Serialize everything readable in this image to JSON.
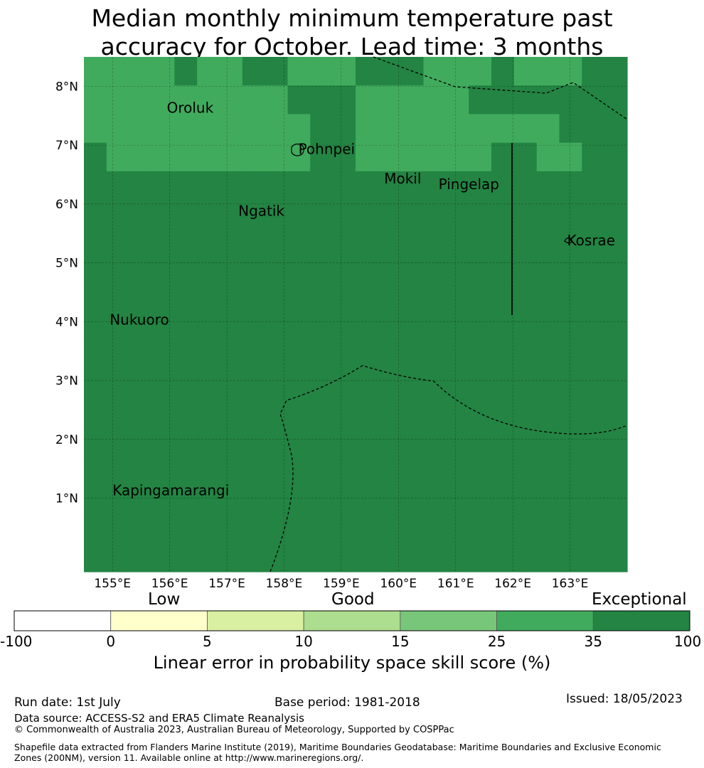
{
  "title_line1": "Median monthly minimum temperature past",
  "title_line2": "accuracy for October. Lead time: 3 months",
  "map": {
    "lon_range": [
      154.5,
      164.0
    ],
    "lat_range": [
      -0.25,
      8.5
    ],
    "lon_ticks": [
      "155°E",
      "156°E",
      "157°E",
      "158°E",
      "159°E",
      "160°E",
      "161°E",
      "162°E",
      "163°E"
    ],
    "lat_ticks": [
      "1°N",
      "2°N",
      "3°N",
      "4°N",
      "5°N",
      "6°N",
      "7°N",
      "8°N"
    ],
    "grid": true,
    "cells": [
      [
        5,
        5,
        5,
        5,
        6,
        5,
        5,
        6,
        6,
        5,
        5,
        5,
        6,
        6,
        6,
        5,
        5,
        5,
        6,
        5,
        5,
        5,
        6,
        6
      ],
      [
        5,
        5,
        5,
        5,
        5,
        5,
        5,
        5,
        5,
        6,
        6,
        6,
        5,
        5,
        5,
        5,
        5,
        6,
        6,
        6,
        6,
        6,
        6,
        6
      ],
      [
        5,
        5,
        5,
        5,
        5,
        5,
        5,
        5,
        5,
        5,
        6,
        6,
        5,
        5,
        5,
        5,
        5,
        5,
        5,
        5,
        5,
        6,
        6,
        6
      ],
      [
        6,
        5,
        5,
        5,
        5,
        5,
        5,
        5,
        5,
        5,
        6,
        6,
        5,
        5,
        5,
        5,
        5,
        5,
        6,
        6,
        5,
        5,
        6,
        6
      ],
      [
        6,
        6,
        6,
        6,
        6,
        6,
        6,
        6,
        6,
        6,
        6,
        6,
        6,
        6,
        6,
        6,
        6,
        6,
        6,
        6,
        6,
        6,
        6,
        6
      ],
      [
        6,
        6,
        6,
        6,
        6,
        6,
        6,
        6,
        6,
        6,
        6,
        6,
        6,
        6,
        6,
        6,
        6,
        6,
        6,
        6,
        6,
        6,
        6,
        6
      ],
      [
        6,
        6,
        6,
        6,
        6,
        6,
        6,
        6,
        6,
        6,
        6,
        6,
        6,
        6,
        6,
        6,
        6,
        6,
        6,
        6,
        6,
        6,
        6,
        6
      ],
      [
        6,
        6,
        6,
        6,
        6,
        6,
        6,
        6,
        6,
        6,
        6,
        6,
        6,
        6,
        6,
        6,
        6,
        6,
        6,
        6,
        6,
        6,
        6,
        6
      ],
      [
        6,
        6,
        6,
        6,
        6,
        6,
        6,
        6,
        6,
        6,
        6,
        6,
        6,
        6,
        6,
        6,
        6,
        6,
        6,
        6,
        6,
        6,
        6,
        6
      ],
      [
        6,
        6,
        6,
        6,
        6,
        6,
        6,
        6,
        6,
        6,
        6,
        6,
        6,
        6,
        6,
        6,
        6,
        6,
        6,
        6,
        6,
        6,
        6,
        6
      ],
      [
        6,
        6,
        6,
        6,
        6,
        6,
        6,
        6,
        6,
        6,
        6,
        6,
        6,
        6,
        6,
        6,
        6,
        6,
        6,
        6,
        6,
        6,
        6,
        6
      ],
      [
        6,
        6,
        6,
        6,
        6,
        6,
        6,
        6,
        6,
        6,
        6,
        6,
        6,
        6,
        6,
        6,
        6,
        6,
        6,
        6,
        6,
        6,
        6,
        6
      ],
      [
        6,
        6,
        6,
        6,
        6,
        6,
        6,
        6,
        6,
        6,
        6,
        6,
        6,
        6,
        6,
        6,
        6,
        6,
        6,
        6,
        6,
        6,
        6,
        6
      ],
      [
        6,
        6,
        6,
        6,
        6,
        6,
        6,
        6,
        6,
        6,
        6,
        6,
        6,
        6,
        6,
        6,
        6,
        6,
        6,
        6,
        6,
        6,
        6,
        6
      ],
      [
        6,
        6,
        6,
        6,
        6,
        6,
        6,
        6,
        6,
        6,
        6,
        6,
        6,
        6,
        6,
        6,
        6,
        6,
        6,
        6,
        6,
        6,
        6,
        6
      ],
      [
        6,
        6,
        6,
        6,
        6,
        6,
        6,
        6,
        6,
        6,
        6,
        6,
        6,
        6,
        6,
        6,
        6,
        6,
        6,
        6,
        6,
        6,
        6,
        6
      ],
      [
        6,
        6,
        6,
        6,
        6,
        6,
        6,
        6,
        6,
        6,
        6,
        6,
        6,
        6,
        6,
        6,
        6,
        6,
        6,
        6,
        6,
        6,
        6,
        6
      ],
      [
        6,
        6,
        6,
        6,
        6,
        6,
        6,
        6,
        6,
        6,
        6,
        6,
        6,
        6,
        6,
        6,
        6,
        6,
        6,
        6,
        6,
        6,
        6,
        6
      ]
    ],
    "places": [
      {
        "name": "Oroluk",
        "lon": 155.95,
        "lat": 7.55
      },
      {
        "name": "Pohnpei",
        "lon": 158.25,
        "lat": 6.85
      },
      {
        "name": "Mokil",
        "lon": 159.75,
        "lat": 6.35
      },
      {
        "name": "Pingelap",
        "lon": 160.7,
        "lat": 6.25
      },
      {
        "name": "Ngatik",
        "lon": 157.2,
        "lat": 5.8
      },
      {
        "name": "Kosrae",
        "lon": 162.95,
        "lat": 5.3
      },
      {
        "name": "Nukuoro",
        "lon": 154.95,
        "lat": 3.95
      },
      {
        "name": "Kapingamarangi",
        "lon": 155.0,
        "lat": 1.05
      }
    ]
  },
  "colorbar": {
    "categories": [
      {
        "label": "Low"
      },
      {
        "label": "Good"
      },
      {
        "label": "Exceptional"
      }
    ],
    "ticks": [
      "-100",
      "0",
      "5",
      "10",
      "15",
      "25",
      "35",
      "100"
    ],
    "colors": [
      "#ffffff",
      "#ffffcc",
      "#d9f0a3",
      "#addd8e",
      "#78c679",
      "#41ab5d",
      "#238443"
    ],
    "title": "Linear error in probability space skill score (%)"
  },
  "footer": {
    "run_date": "Run date: 1st July",
    "base_period": "Base period: 1981-2018",
    "issued": "Issued: 18/05/2023",
    "data_source": "Data source: ACCESS-S2 and ERA5 Climate Reanalysis",
    "copyright": "© Commonwealth of Australia 2023, Australian Bureau of Meteorology, Supported by COSPPac",
    "shapefile": "Shapefile data extracted from Flanders Marine Institute (2019), Maritime Boundaries Geodatabase: Maritime Boundaries and Exclusive Economic Zones (200NM), version 11. Available online at http://www.marineregions.org/."
  }
}
